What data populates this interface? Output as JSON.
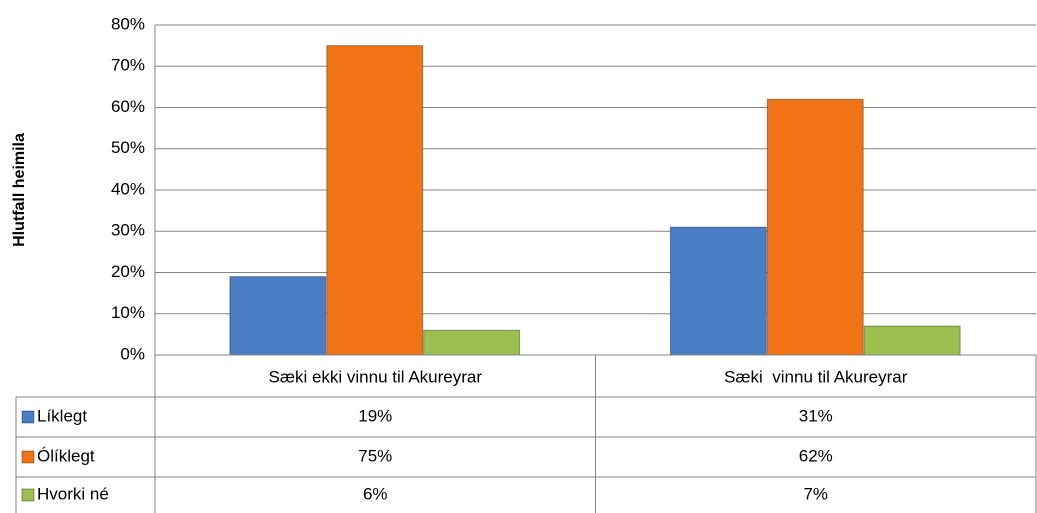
{
  "chart_data": {
    "type": "bar",
    "y_axis_label": "Hlutfall heimila",
    "categories": [
      "Sæki ekki vinnu til Akureyrar",
      "Sæki  vinnu til Akureyrar"
    ],
    "series": [
      {
        "name": "Líklegt",
        "color": "#4a7ec4",
        "values": [
          19,
          31
        ],
        "value_labels": [
          "19%",
          "31%"
        ]
      },
      {
        "name": "Ólíklegt",
        "color": "#f07415",
        "values": [
          75,
          62
        ],
        "value_labels": [
          "75%",
          "62%"
        ]
      },
      {
        "name": "Hvorki né",
        "color": "#9bc04f",
        "values": [
          6,
          7
        ],
        "value_labels": [
          "6%",
          "7%"
        ]
      }
    ],
    "ylim": [
      0,
      80
    ],
    "yticks": [
      {
        "value": 0,
        "label": "0%"
      },
      {
        "value": 10,
        "label": "10%"
      },
      {
        "value": 20,
        "label": "20%"
      },
      {
        "value": 30,
        "label": "30%"
      },
      {
        "value": 40,
        "label": "40%"
      },
      {
        "value": 50,
        "label": "50%"
      },
      {
        "value": 60,
        "label": "60%"
      },
      {
        "value": 70,
        "label": "70%"
      },
      {
        "value": 80,
        "label": "80%"
      }
    ],
    "grid": true,
    "data_table": true
  }
}
